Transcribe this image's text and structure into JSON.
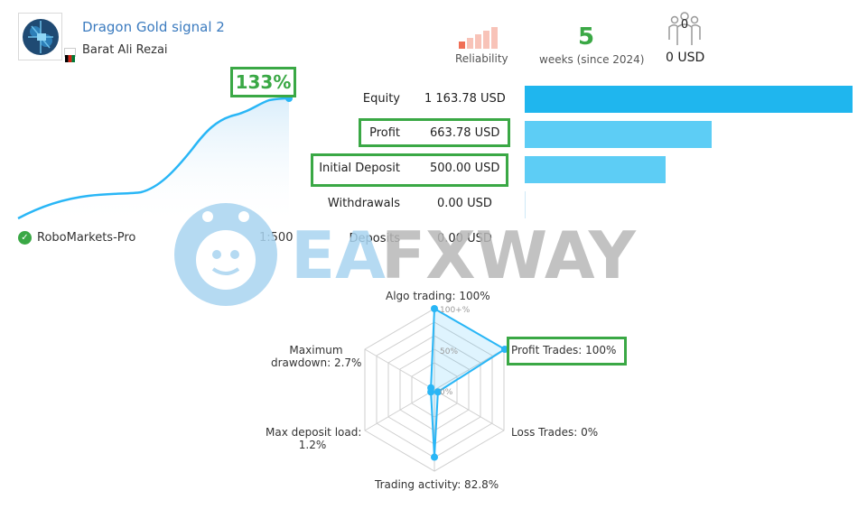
{
  "signal": {
    "title": "Dragon Gold signal 2",
    "author": "Barat Ali Rezai",
    "avatar_icon": "robot-brain-avatar-icon",
    "flag_icon": "afghanistan-flag-icon"
  },
  "stats": {
    "reliability_label": "Reliability",
    "weeks_value": "5",
    "weeks_label": "weeks (since 2024)",
    "subscribers_count": "0",
    "subscribers_usd": "0 USD"
  },
  "growth": {
    "badge": "133%",
    "broker": "RoboMarkets-Pro",
    "leverage": "1:500"
  },
  "metrics": {
    "items": [
      {
        "label": "Equity",
        "value": "1 163.78 USD"
      },
      {
        "label": "Profit",
        "value": "663.78 USD"
      },
      {
        "label": "Initial Deposit",
        "value": "500.00 USD"
      },
      {
        "label": "Withdrawals",
        "value": "0.00 USD"
      },
      {
        "label": "Deposits",
        "value": "0.00 USD"
      }
    ],
    "bar_amounts": [
      1163.78,
      663.78,
      500.0,
      0,
      0
    ]
  },
  "radar": {
    "labels": {
      "algo": "Algo trading: 100%",
      "profit": "Profit Trades: 100%",
      "loss": "Loss Trades: 0%",
      "activity": "Trading activity: 82.8%",
      "deposit_line1": "Max deposit load:",
      "deposit_line2": "1.2%",
      "drawdown_line1": "Maximum",
      "drawdown_line2": "drawdown: 2.7%"
    },
    "ticks": [
      "100+%",
      "50%",
      "0%"
    ],
    "values_percent": [
      100,
      100,
      0,
      82.8,
      1.2,
      2.7
    ]
  },
  "watermark": {
    "text_a": "EA",
    "text_b": "FXWAY",
    "logo_icon": "robot-face-logo-icon"
  },
  "colors": {
    "accent_blue": "#29b6f6",
    "bar_equity": "#1fb6ee",
    "bar_light": "#5dcdf5",
    "highlight_green": "#3aa845",
    "reliability_red": "#f06e55",
    "watermark_blue": "#a9d4f0",
    "watermark_gray": "#b8b8b8"
  }
}
